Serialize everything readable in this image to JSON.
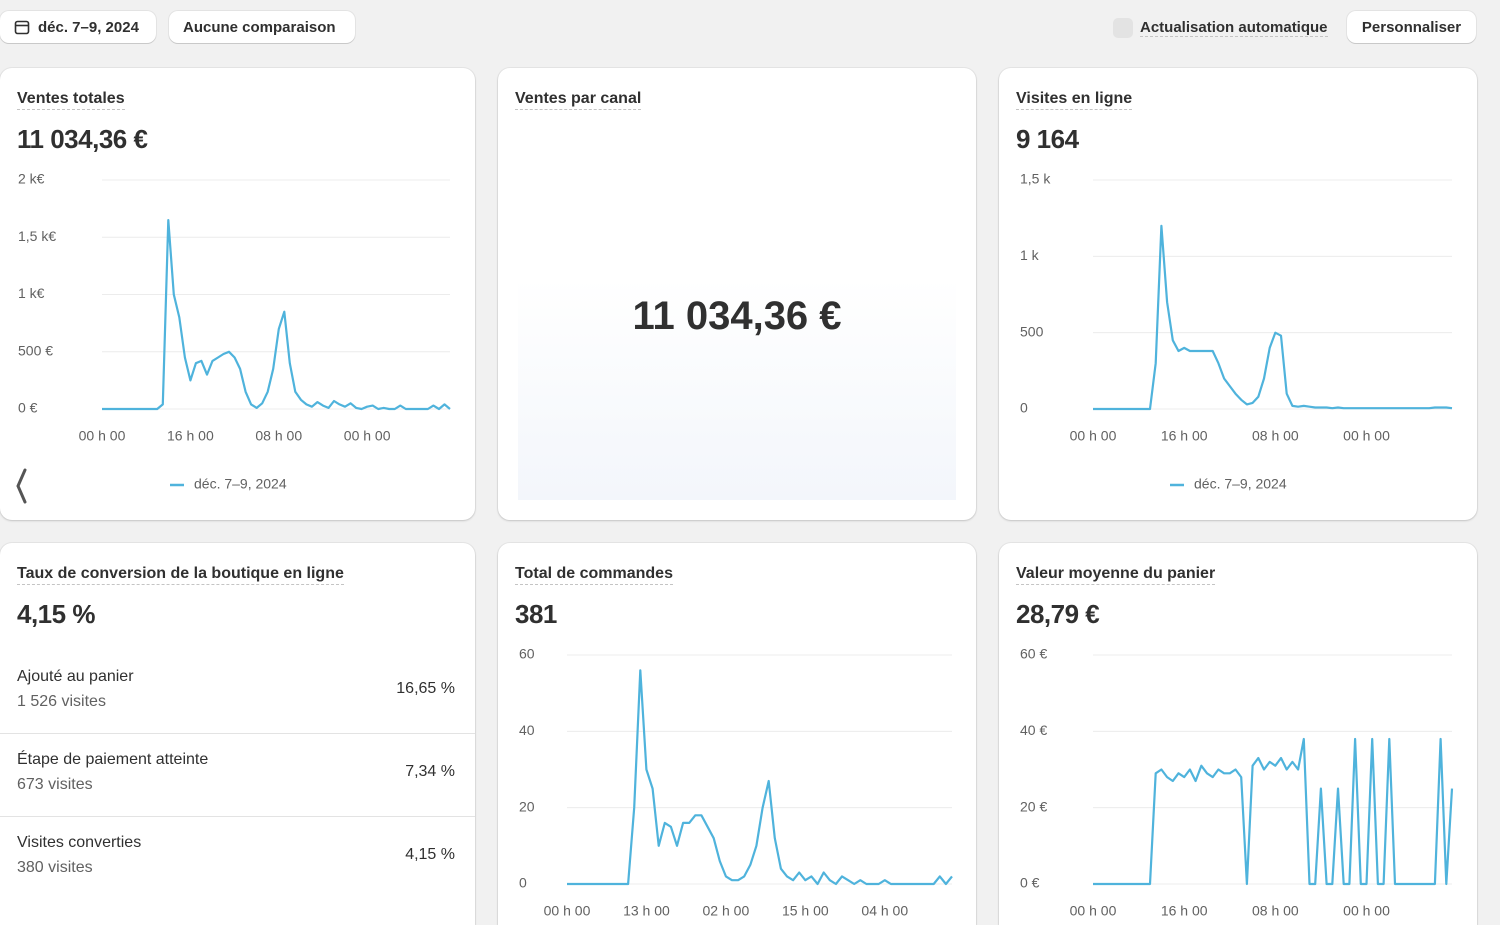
{
  "toolbar": {
    "date_range": "déc. 7–9, 2024",
    "comparison": "Aucune comparaison",
    "auto_refresh": "Actualisation automatique",
    "customize": "Personnaliser"
  },
  "cards": [
    {
      "title": "Ventes totales",
      "value": "11 034,36 €",
      "chart": {
        "type": "line",
        "categories": [
          "00 h 00",
          null,
          null,
          null,
          null,
          null,
          null,
          null,
          null,
          null,
          null,
          null,
          null,
          null,
          null,
          null,
          "16 h 00",
          null,
          null,
          null,
          null,
          null,
          null,
          null,
          null,
          null,
          null,
          null,
          null,
          null,
          null,
          null,
          "08 h 00",
          null,
          null,
          null,
          null,
          null,
          null,
          null,
          null,
          null,
          null,
          null,
          null,
          null,
          null,
          null,
          "00 h 00",
          null,
          null,
          null,
          null,
          null,
          null,
          null,
          null,
          null,
          null,
          null,
          null,
          null,
          null,
          null
        ],
        "series": [
          {
            "name": "déc. 7–9, 2024",
            "color": "#4fb3dc",
            "values": [
              0,
              0,
              0,
              0,
              0,
              0,
              0,
              0,
              0,
              0,
              0,
              40,
              1650,
              1000,
              800,
              450,
              250,
              400,
              420,
              300,
              420,
              450,
              480,
              500,
              450,
              350,
              150,
              40,
              10,
              50,
              150,
              350,
              700,
              850,
              400,
              150,
              80,
              40,
              20,
              60,
              30,
              10,
              70,
              40,
              20,
              50,
              10,
              0,
              20,
              30,
              0,
              10,
              0,
              0,
              30,
              0,
              0,
              0,
              0,
              0,
              30,
              0,
              40,
              0
            ]
          }
        ],
        "ylim": [
          0,
          2000
        ],
        "yticks": [
          {
            "value": 0,
            "label": "0 €"
          },
          {
            "value": 500,
            "label": "500 €"
          },
          {
            "value": 1000,
            "label": "1 k€"
          },
          {
            "value": 1500,
            "label": "1,5 k€"
          },
          {
            "value": 2000,
            "label": "2 k€"
          }
        ],
        "grid": true
      }
    },
    {
      "title": "Ventes par canal",
      "value": "11 034,36 €"
    },
    {
      "title": "Visites en ligne",
      "value": "9 164",
      "chart": {
        "type": "line",
        "categories": [
          "00 h 00",
          null,
          null,
          null,
          null,
          null,
          null,
          null,
          null,
          null,
          null,
          null,
          null,
          null,
          null,
          null,
          "16 h 00",
          null,
          null,
          null,
          null,
          null,
          null,
          null,
          null,
          null,
          null,
          null,
          null,
          null,
          null,
          null,
          "08 h 00",
          null,
          null,
          null,
          null,
          null,
          null,
          null,
          null,
          null,
          null,
          null,
          null,
          null,
          null,
          null,
          "00 h 00",
          null,
          null,
          null,
          null,
          null,
          null,
          null,
          null,
          null,
          null,
          null,
          null,
          null,
          null,
          null
        ],
        "series": [
          {
            "name": "déc. 7–9, 2024",
            "color": "#4fb3dc",
            "values": [
              0,
              0,
              0,
              0,
              0,
              0,
              0,
              0,
              0,
              0,
              0,
              300,
              1200,
              700,
              450,
              380,
              400,
              380,
              380,
              380,
              380,
              380,
              300,
              200,
              150,
              100,
              60,
              30,
              40,
              80,
              200,
              400,
              500,
              480,
              100,
              20,
              15,
              20,
              15,
              10,
              10,
              10,
              5,
              10,
              5,
              5,
              5,
              5,
              5,
              5,
              5,
              5,
              5,
              5,
              5,
              5,
              5,
              5,
              5,
              5,
              10,
              10,
              10,
              5
            ]
          }
        ],
        "ylim": [
          0,
          1500
        ],
        "yticks": [
          0,
          500,
          {
            "value": 1000,
            "label": "1 k"
          },
          {
            "value": 1500,
            "label": "1,5 k"
          }
        ],
        "grid": true
      }
    },
    {
      "title": "Taux de conversion de la boutique en ligne",
      "value": "4,15 %",
      "rows": [
        {
          "label": "Ajouté au panier",
          "visits": "1 526 visites",
          "rate": "16,65 %"
        },
        {
          "label": "Étape de paiement atteinte",
          "visits": "673 visites",
          "rate": "7,34 %"
        },
        {
          "label": "Visites converties",
          "visits": "380 visites",
          "rate": "4,15 %"
        }
      ]
    },
    {
      "title": "Total de commandes",
      "value": "381",
      "chart": {
        "type": "line",
        "categories": [
          "00 h 00",
          null,
          null,
          null,
          null,
          null,
          null,
          null,
          null,
          null,
          null,
          null,
          null,
          "13 h 00",
          null,
          null,
          null,
          null,
          null,
          null,
          null,
          null,
          null,
          null,
          null,
          null,
          "02 h 00",
          null,
          null,
          null,
          null,
          null,
          null,
          null,
          null,
          null,
          null,
          null,
          null,
          "15 h 00",
          null,
          null,
          null,
          null,
          null,
          null,
          null,
          null,
          null,
          null,
          null,
          null,
          "04 h 00",
          null,
          null,
          null,
          null,
          null,
          null,
          null,
          null,
          null,
          null,
          null
        ],
        "series": [
          {
            "color": "#4fb3dc",
            "values": [
              0,
              0,
              0,
              0,
              0,
              0,
              0,
              0,
              0,
              0,
              0,
              20,
              56,
              30,
              25,
              10,
              16,
              15,
              10,
              16,
              16,
              18,
              18,
              15,
              12,
              6,
              2,
              1,
              1,
              2,
              5,
              10,
              20,
              27,
              12,
              4,
              2,
              1,
              3,
              1,
              2,
              0,
              3,
              1,
              0,
              2,
              1,
              0,
              1,
              0,
              0,
              0,
              1,
              0,
              0,
              0,
              0,
              0,
              0,
              0,
              0,
              2,
              0,
              2
            ]
          }
        ],
        "ylim": [
          0,
          60
        ],
        "yticks": [
          0,
          20,
          40,
          60
        ],
        "grid": true
      }
    },
    {
      "title": "Valeur moyenne du panier",
      "value": "28,79 €",
      "chart": {
        "type": "line",
        "categories": [
          "00 h 00",
          null,
          null,
          null,
          null,
          null,
          null,
          null,
          null,
          null,
          null,
          null,
          null,
          null,
          null,
          null,
          "16 h 00",
          null,
          null,
          null,
          null,
          null,
          null,
          null,
          null,
          null,
          null,
          null,
          null,
          null,
          null,
          null,
          "08 h 00",
          null,
          null,
          null,
          null,
          null,
          null,
          null,
          null,
          null,
          null,
          null,
          null,
          null,
          null,
          null,
          "00 h 00",
          null,
          null,
          null,
          null,
          null,
          null,
          null,
          null,
          null,
          null,
          null,
          null,
          null,
          null,
          null
        ],
        "series": [
          {
            "color": "#4fb3dc",
            "values": [
              0,
              0,
              0,
              0,
              0,
              0,
              0,
              0,
              0,
              0,
              0,
              29,
              30,
              28,
              27,
              29,
              28,
              30,
              27,
              31,
              29,
              28,
              30,
              29,
              29,
              30,
              28,
              0,
              31,
              33,
              30,
              32,
              31,
              33,
              30,
              32,
              30,
              38,
              0,
              0,
              25,
              0,
              0,
              25,
              0,
              0,
              38,
              0,
              0,
              38,
              0,
              0,
              38,
              0,
              0,
              0,
              0,
              0,
              0,
              0,
              0,
              38,
              0,
              25
            ]
          }
        ],
        "ylim": [
          0,
          60
        ],
        "yticks": [
          {
            "value": 0,
            "label": "0 €"
          },
          {
            "value": 20,
            "label": "20 €"
          },
          {
            "value": 40,
            "label": "40 €"
          },
          {
            "value": 60,
            "label": "60 €"
          }
        ],
        "grid": true
      }
    }
  ]
}
